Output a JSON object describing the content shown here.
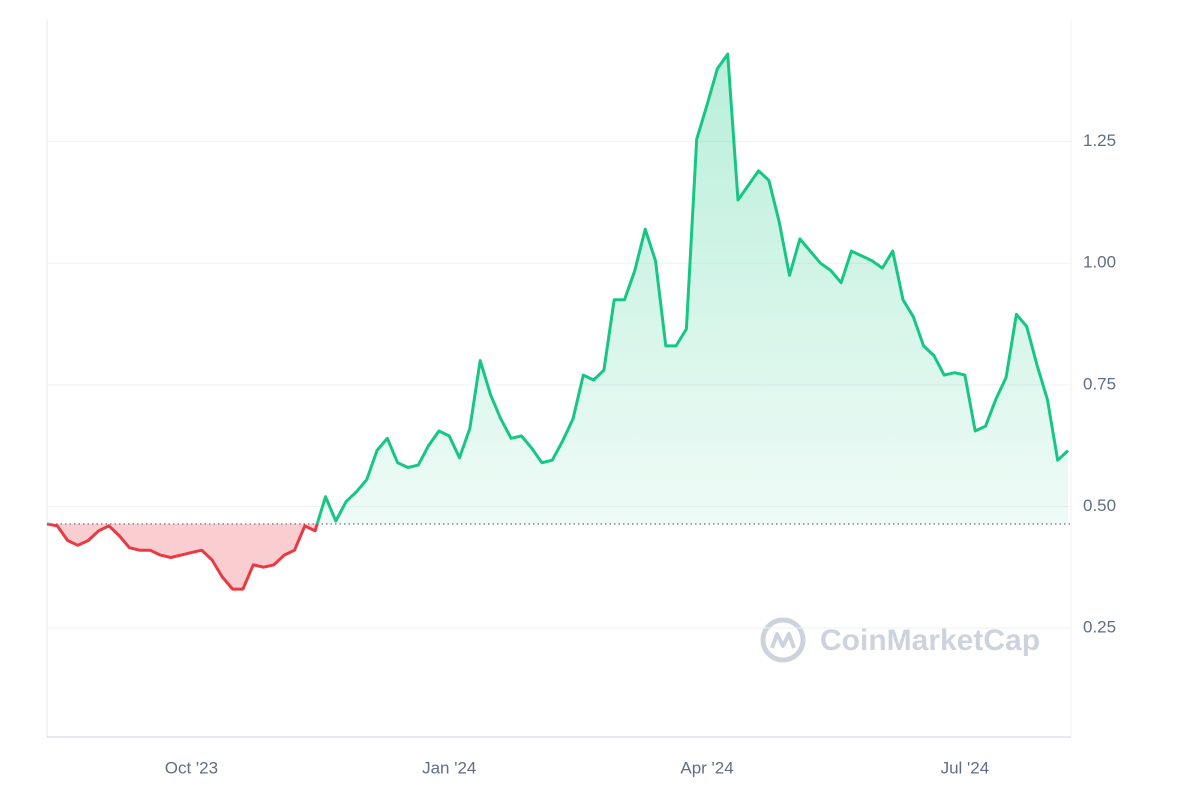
{
  "chart_data": {
    "type": "line",
    "categories": [
      null,
      null,
      null,
      null,
      null,
      null,
      null,
      null,
      null,
      null,
      null,
      null,
      null,
      null,
      "Oct '23",
      null,
      null,
      null,
      null,
      null,
      null,
      null,
      null,
      null,
      null,
      null,
      null,
      null,
      null,
      null,
      null,
      null,
      null,
      null,
      null,
      null,
      null,
      null,
      null,
      "Jan '24",
      null,
      null,
      null,
      null,
      null,
      null,
      null,
      null,
      null,
      null,
      null,
      null,
      null,
      null,
      null,
      null,
      null,
      null,
      null,
      null,
      null,
      null,
      null,
      null,
      "Apr '24",
      null,
      null,
      null,
      null,
      null,
      null,
      null,
      null,
      null,
      null,
      null,
      null,
      null,
      null,
      null,
      null,
      null,
      null,
      null,
      null,
      null,
      null,
      null,
      null,
      "Jul '24",
      null,
      null,
      null,
      null,
      null,
      null,
      null,
      null,
      null,
      null
    ],
    "values": [
      0.464,
      0.46,
      0.43,
      0.42,
      0.43,
      0.45,
      0.46,
      0.44,
      0.415,
      0.41,
      0.41,
      0.4,
      0.395,
      0.4,
      0.405,
      0.41,
      0.39,
      0.355,
      0.33,
      0.33,
      0.38,
      0.375,
      0.38,
      0.4,
      0.41,
      0.46,
      0.45,
      0.52,
      0.47,
      0.51,
      0.53,
      0.555,
      0.615,
      0.64,
      0.59,
      0.58,
      0.585,
      0.625,
      0.655,
      0.645,
      0.6,
      0.66,
      0.8,
      0.73,
      0.68,
      0.64,
      0.645,
      0.62,
      0.59,
      0.595,
      0.635,
      0.68,
      0.77,
      0.76,
      0.78,
      0.925,
      0.925,
      0.985,
      1.07,
      1.005,
      0.83,
      0.83,
      0.865,
      1.255,
      1.325,
      1.4,
      1.43,
      1.13,
      1.16,
      1.19,
      1.17,
      1.085,
      0.975,
      1.05,
      1.025,
      1.0,
      0.985,
      0.96,
      1.025,
      1.015,
      1.005,
      0.99,
      1.025,
      0.925,
      0.89,
      0.83,
      0.81,
      0.77,
      0.775,
      0.77,
      0.655,
      0.665,
      0.72,
      0.765,
      0.895,
      0.87,
      0.79,
      0.72,
      0.595,
      0.615
    ],
    "baseline": 0.464,
    "up_color": "#16c784",
    "down_color": "#ea3943",
    "ylim": [
      0.026,
      1.5
    ],
    "yticks": [
      0.25,
      {
        "value": 0.5,
        "label": "0.50"
      },
      0.75,
      {
        "value": 1.0,
        "label": "1.00"
      },
      1.25
    ],
    "grid": true,
    "watermark": "CoinMarketCap"
  }
}
